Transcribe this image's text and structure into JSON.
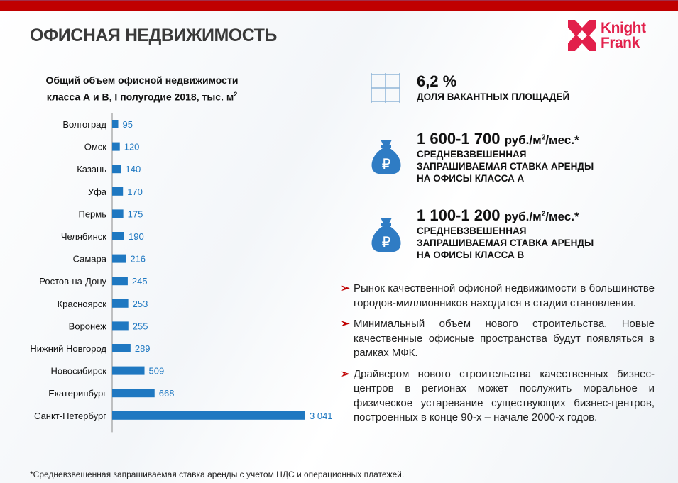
{
  "header": {
    "title": "ОФИСНАЯ НЕДВИЖИМОСТЬ",
    "logo": "Knight Frank",
    "accent": "#c00000",
    "logo_color": "#e2204b"
  },
  "chart_data": {
    "type": "bar",
    "orientation": "horizontal",
    "title_line1": "Общий объем офисной недвижимости",
    "title_line2": "класса А и В, I полугодие 2018, тыс. м",
    "title_sup": "2",
    "categories": [
      "Волгоград",
      "Омск",
      "Казань",
      "Уфа",
      "Пермь",
      "Челябинск",
      "Самара",
      "Ростов-на-Дону",
      "Красноярск",
      "Воронеж",
      "Нижний Новгород",
      "Новосибирск",
      "Екатеринбург",
      "Санкт-Петербург"
    ],
    "values": [
      95,
      120,
      140,
      170,
      175,
      190,
      216,
      245,
      253,
      255,
      289,
      509,
      668,
      3041
    ],
    "labels": [
      "95",
      "120",
      "140",
      "170",
      "175",
      "190",
      "216",
      "245",
      "253",
      "255",
      "289",
      "509",
      "668",
      "3 041"
    ],
    "bar_color": "#1f78c1",
    "label_color": "#1f78c1",
    "grid": false
  },
  "stats": [
    {
      "icon": "grid-icon",
      "value": "6,2 %",
      "caption": [
        "ДОЛЯ ВАКАНТНЫХ ПЛОЩАДЕЙ"
      ]
    },
    {
      "icon": "ruble-money-bag-icon",
      "value": "1 600-1 700",
      "unit": "руб./м",
      "unit_sup": "2",
      "unit_tail": "/мес.*",
      "caption": [
        "СРЕДНЕВЗВЕШЕННАЯ",
        "ЗАПРАШИВАЕМАЯ СТАВКА АРЕНДЫ",
        "НА ОФИСЫ КЛАССА А"
      ]
    },
    {
      "icon": "ruble-money-bag-icon",
      "value": "1 100-1 200",
      "unit": "руб./м",
      "unit_sup": "2",
      "unit_tail": "/мес.*",
      "caption": [
        "СРЕДНЕВЗВЕШЕННАЯ",
        "ЗАПРАШИВАЕМАЯ СТАВКА АРЕНДЫ",
        "НА ОФИСЫ КЛАССА В"
      ]
    }
  ],
  "bullets": [
    "Рынок качественной офисной недвижимости в большинстве городов-миллионников находится в стадии становления.",
    "Минимальный объем нового строительства. Новые качественные офисные пространства будут появляться в рамках МФК.",
    "Драйвером нового строительства качественных бизнес-центров в регионах может послужить моральное и физическое устаревание существующих бизнес-центров, построенных в конце 90-х – начале 2000-х годов."
  ],
  "bullet_marker": "➢",
  "footnote": "*Средневзвешенная запрашиваемая ставка аренды с учетом НДС и операционных платежей."
}
